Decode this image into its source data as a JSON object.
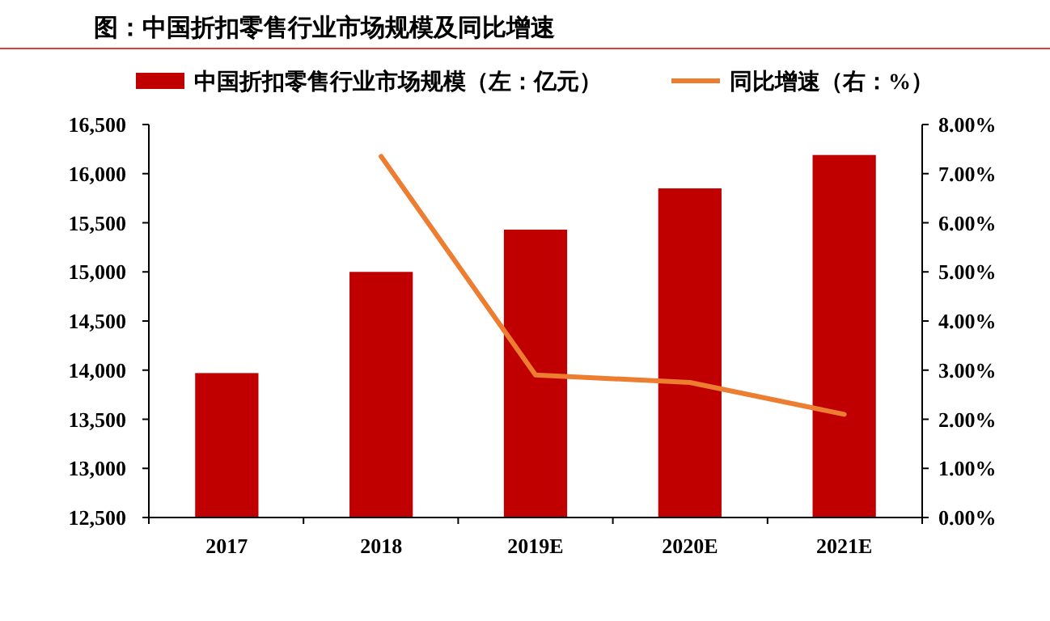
{
  "chart_data": {
    "type": "bar",
    "title": "图：中国折扣零售行业市场规模及同比增速",
    "categories": [
      "2017",
      "2018",
      "2019E",
      "2020E",
      "2021E"
    ],
    "series": [
      {
        "name": "中国折扣零售行业市场规模（左：亿元）",
        "color": "#c00000",
        "values": [
          13970,
          15000,
          15430,
          15850,
          16190
        ]
      },
      {
        "name": "同比增速（右：%）",
        "type": "line",
        "axis": "y2",
        "color": "#ed7d31",
        "values": [
          null,
          7.35,
          2.9,
          2.75,
          2.1
        ]
      }
    ],
    "ylim": [
      12500,
      16500
    ],
    "yticks": [
      {
        "value": 12500,
        "label": "12,500"
      },
      {
        "value": 13000,
        "label": "13,000"
      },
      {
        "value": 13500,
        "label": "13,500"
      },
      {
        "value": 14000,
        "label": "14,000"
      },
      {
        "value": 14500,
        "label": "14,500"
      },
      {
        "value": 15000,
        "label": "15,000"
      },
      {
        "value": 15500,
        "label": "15,500"
      },
      {
        "value": 16000,
        "label": "16,000"
      },
      {
        "value": 16500,
        "label": "16,500"
      }
    ],
    "y2lim": [
      0,
      8
    ],
    "y2ticks": [
      {
        "value": 0,
        "label": "0.00%"
      },
      {
        "value": 1,
        "label": "1.00%"
      },
      {
        "value": 2,
        "label": "2.00%"
      },
      {
        "value": 3,
        "label": "3.00%"
      },
      {
        "value": 4,
        "label": "4.00%"
      },
      {
        "value": 5,
        "label": "5.00%"
      },
      {
        "value": 6,
        "label": "6.00%"
      },
      {
        "value": 7,
        "label": "7.00%"
      },
      {
        "value": 8,
        "label": "8.00%"
      }
    ],
    "legend": "top",
    "grid": false
  }
}
